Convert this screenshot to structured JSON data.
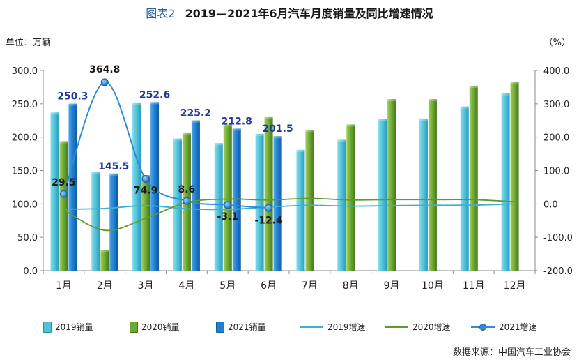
{
  "title": {
    "fig": "图表2",
    "main": "2019—2021年6月汽车月度销量及同比增速情况"
  },
  "unit_left": "单位：万辆",
  "unit_right": "（%）",
  "source": "数据来源：中国汽车工业协会",
  "colors": {
    "s2019": "#4fc3d9",
    "s2020": "#6fa833",
    "s2021": "#1f7fd1",
    "l2019": "#3fb0d0",
    "l2020": "#5e9a2c",
    "l2021": "#2f8cd6"
  },
  "chart_data": {
    "type": "bar",
    "categories": [
      "1月",
      "2月",
      "3月",
      "4月",
      "5月",
      "6月",
      "7月",
      "8月",
      "9月",
      "10月",
      "11月",
      "12月"
    ],
    "ylim": [
      0,
      300
    ],
    "y_ticks": [
      "0.0",
      "50.0",
      "100.0",
      "150.0",
      "200.0",
      "250.0",
      "300.0"
    ],
    "y2lim": [
      -200,
      400
    ],
    "y2_ticks": [
      "-200.0",
      "-100.0",
      "0.0",
      "100.0",
      "200.0",
      "300.0",
      "400.0"
    ],
    "series": [
      {
        "name": "2019销量",
        "kind": "bar",
        "axis": "left",
        "values": [
          237,
          148,
          252,
          198,
          191,
          205,
          181,
          196,
          227,
          228,
          246,
          266
        ]
      },
      {
        "name": "2020销量",
        "kind": "bar",
        "axis": "left",
        "values": [
          194,
          31,
          143,
          207,
          219,
          230,
          211,
          219,
          257,
          257,
          277,
          283
        ]
      },
      {
        "name": "2021销量",
        "kind": "bar",
        "axis": "left",
        "values": [
          250.3,
          145.5,
          252.6,
          225.2,
          212.8,
          201.5,
          null,
          null,
          null,
          null,
          null,
          null
        ],
        "labels": [
          "250.3",
          "145.5",
          "252.6",
          "225.2",
          "212.8",
          "201.5"
        ]
      },
      {
        "name": "2019增速",
        "kind": "line",
        "axis": "right",
        "values": [
          -15.8,
          -13.7,
          -5.2,
          -14.6,
          -16.4,
          -9.6,
          -4.3,
          -6.9,
          -5.2,
          -4.1,
          -3.6,
          0.1
        ]
      },
      {
        "name": "2020增速",
        "kind": "line",
        "axis": "right",
        "values": [
          -18.0,
          -79.1,
          -43.3,
          4.4,
          14.5,
          11.6,
          16.4,
          11.6,
          12.8,
          12.5,
          12.6,
          6.4
        ]
      },
      {
        "name": "2021增速",
        "kind": "line",
        "axis": "right",
        "values": [
          29.5,
          364.8,
          74.9,
          8.6,
          -3.1,
          -12.4,
          null,
          null,
          null,
          null,
          null,
          null
        ],
        "labels": [
          "29.5",
          "364.8",
          "74.9",
          "8.6",
          "-3.1",
          "-12.4"
        ]
      }
    ],
    "grid": false,
    "legend_position": "bottom"
  },
  "legend": [
    "2019销量",
    "2020销量",
    "2021销量",
    "2019增速",
    "2020增速",
    "2021增速"
  ]
}
